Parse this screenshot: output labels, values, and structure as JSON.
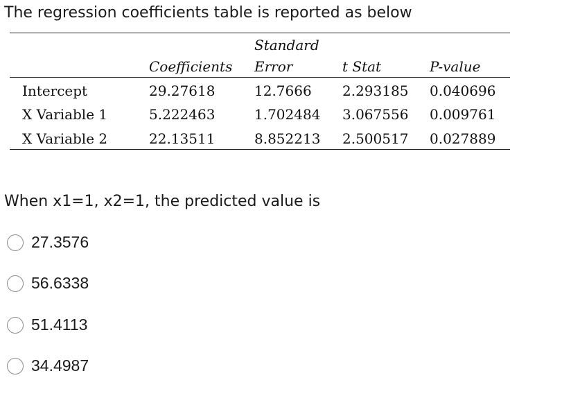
{
  "question": {
    "title": "The regression coefficients table is reported as below",
    "prompt": "When x1=1, x2=1, the predicted value is"
  },
  "table": {
    "headers": {
      "coefficients": "Coefficients",
      "standard_error_line1": "Standard",
      "standard_error_line2": "Error",
      "t_stat": "t Stat",
      "p_value": "P-value"
    },
    "rows": [
      {
        "label": "Intercept",
        "coefficients": "29.27618",
        "standard_error": "12.7666",
        "t_stat": "2.293185",
        "p_value": "0.040696"
      },
      {
        "label": "X Variable 1",
        "coefficients": "5.222463",
        "standard_error": "1.702484",
        "t_stat": "3.067556",
        "p_value": "0.009761"
      },
      {
        "label": "X Variable 2",
        "coefficients": "22.13511",
        "standard_error": "8.852213",
        "t_stat": "2.500517",
        "p_value": "0.027889"
      }
    ]
  },
  "options": [
    {
      "label": "27.3576"
    },
    {
      "label": "56.6338"
    },
    {
      "label": "51.4113"
    },
    {
      "label": "34.4987"
    }
  ]
}
